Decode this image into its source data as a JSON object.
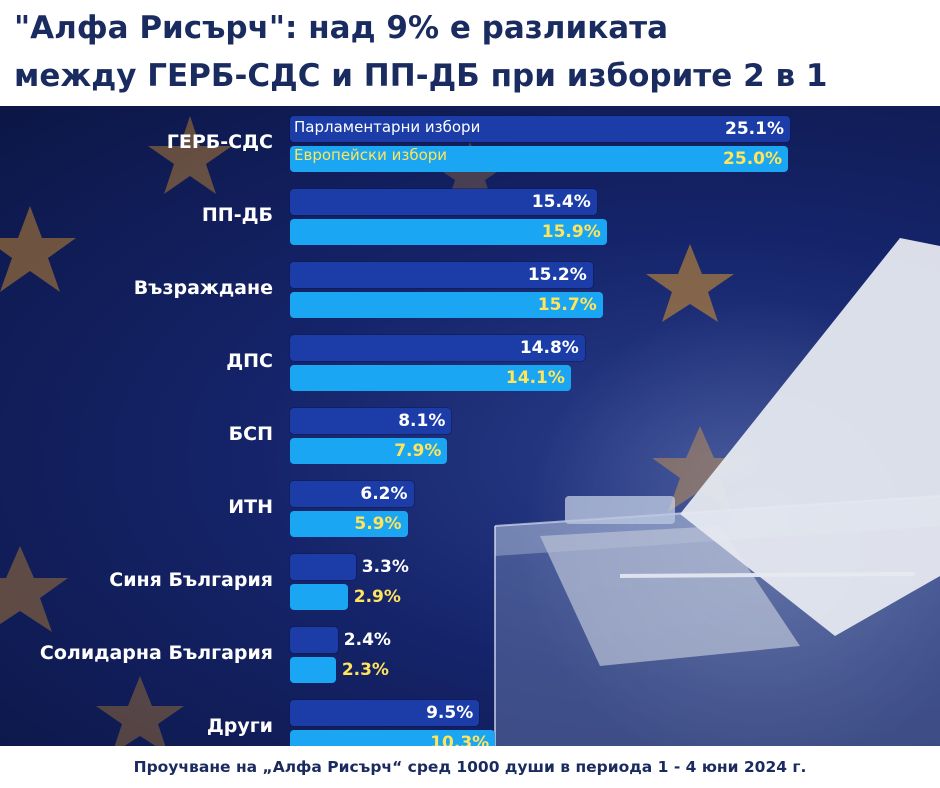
{
  "headline": {
    "line1": "\"Алфа Рисърч\": над 9% е разликата",
    "line2": "между ГЕРБ-СДС и ПП-ДБ при изборите 2 в 1"
  },
  "footer": {
    "text": "Проучване на „Алфа Рисърч“ сред 1000 души в периода 1 - 4 юни 2024 г."
  },
  "colors": {
    "parliamentary": "#1c3da8",
    "european": "#1aa6f2",
    "european_label": "#ffe45c",
    "background": "#15246a",
    "stars": "#e39a2a"
  },
  "chart_data": {
    "type": "bar",
    "orientation": "horizontal",
    "categories": [
      "ГЕРБ-СДС",
      "ПП-ДБ",
      "Възраждане",
      "ДПС",
      "БСП",
      "ИТН",
      "Синя България",
      "Солидарна България",
      "Други"
    ],
    "series": [
      {
        "name": "Парламентарни избори",
        "values": [
          25.1,
          15.4,
          15.2,
          14.8,
          8.1,
          6.2,
          3.3,
          2.4,
          9.5
        ],
        "labels": [
          "25.1%",
          "15.4%",
          "15.2%",
          "14.8%",
          "8.1%",
          "6.2%",
          "3.3%",
          "2.4%",
          "9.5%"
        ]
      },
      {
        "name": "Европейски избори",
        "values": [
          25.0,
          15.9,
          15.7,
          14.1,
          7.9,
          5.9,
          2.9,
          2.3,
          10.3
        ],
        "labels": [
          "25.0%",
          "15.9%",
          "15.7%",
          "14.1%",
          "7.9%",
          "5.9%",
          "2.9%",
          "2.3%",
          "10.3%"
        ]
      }
    ],
    "xlim": [
      0,
      25.1
    ],
    "legend": "inside-first-bars",
    "grid": false
  }
}
